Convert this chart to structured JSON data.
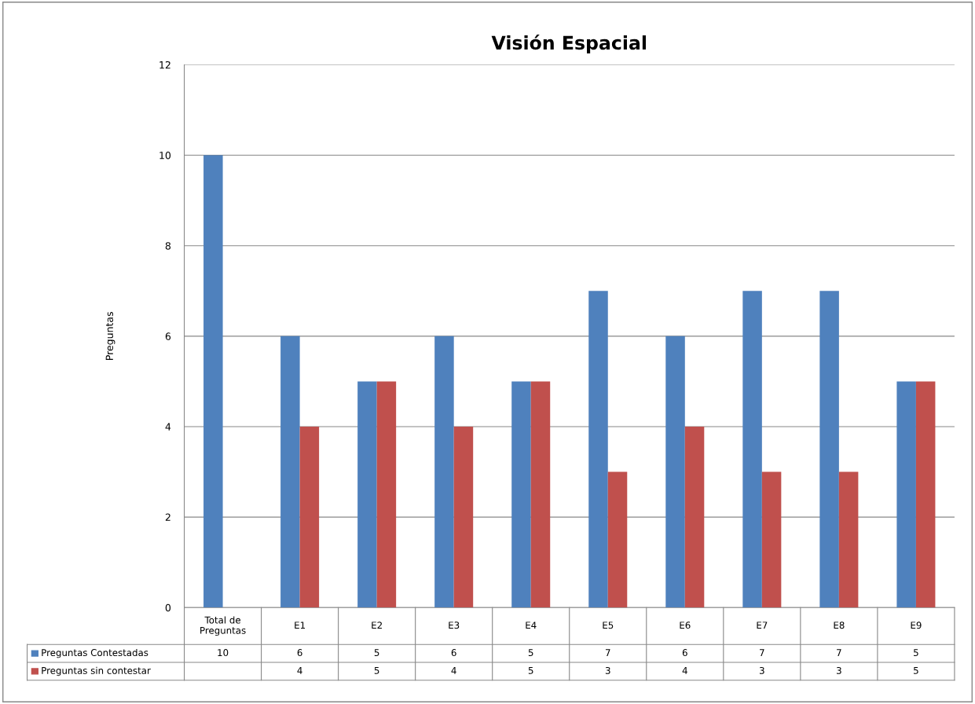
{
  "chart_data": {
    "type": "bar",
    "title": "Visión Espacial",
    "ylabel": "Preguntas",
    "categories": [
      "Total de\nPreguntas",
      "E1",
      "E2",
      "E3",
      "E4",
      "E5",
      "E6",
      "E7",
      "E8",
      "E9"
    ],
    "series": [
      {
        "name": "Preguntas Contestadas",
        "color": "#4f81bd",
        "values": [
          10,
          6,
          5,
          6,
          5,
          7,
          6,
          7,
          7,
          5
        ]
      },
      {
        "name": "Preguntas sin contestar",
        "color": "#c0504d",
        "values": [
          null,
          4,
          5,
          4,
          5,
          3,
          4,
          3,
          3,
          5
        ]
      }
    ],
    "ylim": [
      0,
      12
    ],
    "yticks": [
      0,
      2,
      4,
      6,
      8,
      10,
      12
    ],
    "grid": "y",
    "data_labels": true,
    "legend": "bottom left"
  }
}
